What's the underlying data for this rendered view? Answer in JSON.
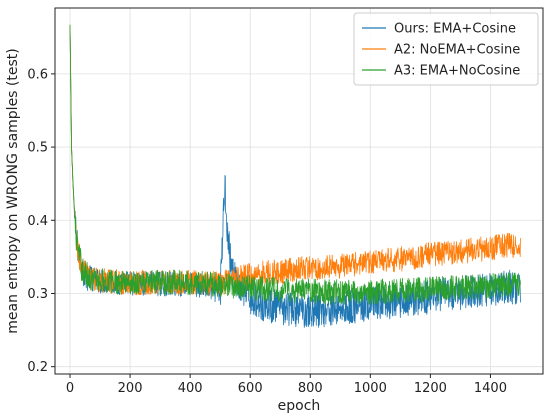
{
  "chart_data": {
    "type": "line",
    "title": "",
    "xlabel": "epoch",
    "ylabel": "mean entropy on WRONG samples (test)",
    "xlim": [
      -50,
      1575
    ],
    "ylim": [
      0.19,
      0.69
    ],
    "xticks": [
      0,
      200,
      400,
      600,
      800,
      1000,
      1200,
      1400
    ],
    "yticks": [
      0.2,
      0.3,
      0.4,
      0.5,
      0.6
    ],
    "grid": true,
    "legend_position": "top-right",
    "series": [
      {
        "name": "Ours: EMA+Cosine",
        "color": "#1f77b4",
        "x": [
          0,
          5,
          10,
          15,
          20,
          30,
          40,
          50,
          75,
          100,
          150,
          200,
          250,
          300,
          350,
          400,
          450,
          480,
          500,
          505,
          510,
          515,
          520,
          525,
          530,
          540,
          560,
          600,
          650,
          700,
          750,
          800,
          850,
          900,
          950,
          1000,
          1050,
          1100,
          1150,
          1200,
          1250,
          1300,
          1350,
          1400,
          1450,
          1500
        ],
        "values": [
          0.667,
          0.5,
          0.45,
          0.41,
          0.38,
          0.35,
          0.335,
          0.325,
          0.32,
          0.317,
          0.315,
          0.314,
          0.314,
          0.313,
          0.313,
          0.313,
          0.31,
          0.305,
          0.3,
          0.34,
          0.4,
          0.455,
          0.42,
          0.38,
          0.36,
          0.33,
          0.31,
          0.295,
          0.285,
          0.28,
          0.278,
          0.277,
          0.278,
          0.28,
          0.282,
          0.285,
          0.287,
          0.29,
          0.293,
          0.296,
          0.298,
          0.301,
          0.303,
          0.305,
          0.308,
          0.31
        ]
      },
      {
        "name": "A2: NoEMA+Cosine",
        "color": "#ff7f0e",
        "x": [
          0,
          5,
          10,
          15,
          20,
          30,
          40,
          50,
          75,
          100,
          150,
          200,
          250,
          300,
          350,
          400,
          450,
          500,
          550,
          600,
          650,
          700,
          750,
          800,
          850,
          900,
          950,
          1000,
          1050,
          1100,
          1150,
          1200,
          1250,
          1300,
          1350,
          1400,
          1450,
          1500
        ],
        "values": [
          0.667,
          0.5,
          0.45,
          0.41,
          0.38,
          0.35,
          0.335,
          0.325,
          0.32,
          0.318,
          0.316,
          0.315,
          0.315,
          0.315,
          0.315,
          0.315,
          0.314,
          0.313,
          0.32,
          0.325,
          0.328,
          0.33,
          0.332,
          0.335,
          0.335,
          0.337,
          0.34,
          0.342,
          0.345,
          0.347,
          0.35,
          0.353,
          0.355,
          0.357,
          0.36,
          0.362,
          0.365,
          0.367
        ]
      },
      {
        "name": "A3: EMA+NoCosine",
        "color": "#2ca02c",
        "x": [
          0,
          5,
          10,
          15,
          20,
          30,
          40,
          50,
          75,
          100,
          150,
          200,
          250,
          300,
          350,
          400,
          450,
          500,
          550,
          600,
          650,
          700,
          750,
          800,
          850,
          900,
          950,
          1000,
          1050,
          1100,
          1150,
          1200,
          1250,
          1300,
          1350,
          1400,
          1450,
          1500
        ],
        "values": [
          0.667,
          0.5,
          0.45,
          0.41,
          0.38,
          0.35,
          0.335,
          0.325,
          0.32,
          0.318,
          0.316,
          0.315,
          0.315,
          0.315,
          0.315,
          0.315,
          0.314,
          0.312,
          0.31,
          0.308,
          0.306,
          0.305,
          0.304,
          0.303,
          0.302,
          0.302,
          0.302,
          0.302,
          0.303,
          0.304,
          0.305,
          0.306,
          0.307,
          0.308,
          0.309,
          0.31,
          0.312,
          0.313
        ]
      }
    ]
  }
}
